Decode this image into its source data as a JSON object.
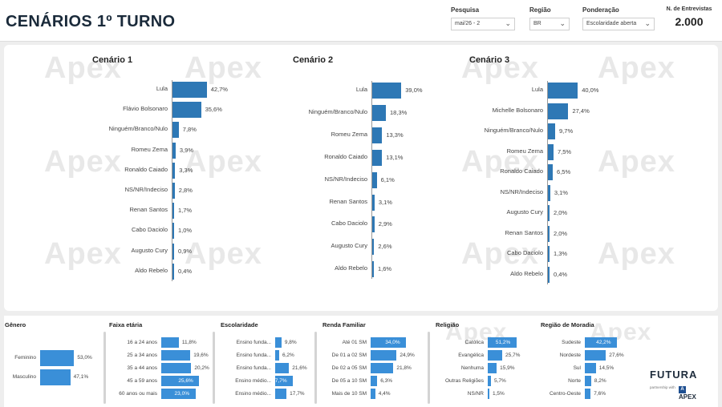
{
  "page": {
    "title": "CENÁRIOS 1º TURNO"
  },
  "filters": [
    {
      "label": "Pesquisa",
      "value": "mai/26 - 2"
    },
    {
      "label": "Região",
      "value": "BR"
    },
    {
      "label": "Ponderação",
      "value": "Escolaridade aberta"
    }
  ],
  "count": {
    "label": "N. de Entrevistas",
    "value": "2.000"
  },
  "watermark": "Apex",
  "chart_data": [
    {
      "type": "bar",
      "title": "Cenário 1",
      "categories": [
        "Lula",
        "Flávio Bolsonaro",
        "Ninguém/Branco/Nulo",
        "Romeu Zema",
        "Ronaldo Caiado",
        "NS/NR/Indeciso",
        "Renan Santos",
        "Cabo Daciolo",
        "Augusto Cury",
        "Aldo Rebelo"
      ],
      "values": [
        42.7,
        35.6,
        7.8,
        3.9,
        3.3,
        2.8,
        1.7,
        1.0,
        0.9,
        0.4
      ],
      "labels": [
        "42,7%",
        "35,6%",
        "7,8%",
        "3,9%",
        "3,3%",
        "2,8%",
        "1,7%",
        "1,0%",
        "0,9%",
        "0,4%"
      ]
    },
    {
      "type": "bar",
      "title": "Cenário 2",
      "categories": [
        "Lula",
        "Ninguém/Branco/Nulo",
        "Romeu Zema",
        "Ronaldo Caiado",
        "NS/NR/Indeciso",
        "Renan Santos",
        "Cabo Daciolo",
        "Augusto Cury",
        "Aldo Rebelo"
      ],
      "values": [
        39.0,
        18.3,
        13.3,
        13.1,
        6.1,
        3.1,
        2.9,
        2.6,
        1.6
      ],
      "labels": [
        "39,0%",
        "18,3%",
        "13,3%",
        "13,1%",
        "6,1%",
        "3,1%",
        "2,9%",
        "2,6%",
        "1,6%"
      ]
    },
    {
      "type": "bar",
      "title": "Cenário 3",
      "categories": [
        "Lula",
        "Michelle Bolsonaro",
        "Ninguém/Branco/Nulo",
        "Romeu Zema",
        "Ronaldo Caiado",
        "NS/NR/Indeciso",
        "Augusto Cury",
        "Renan Santos",
        "Cabo Daciolo",
        "Aldo Rebelo"
      ],
      "values": [
        40.0,
        27.4,
        9.7,
        7.5,
        6.5,
        3.1,
        2.0,
        2.0,
        1.3,
        0.4
      ],
      "labels": [
        "40,0%",
        "27,4%",
        "9,7%",
        "7,5%",
        "6,5%",
        "3,1%",
        "2,0%",
        "2,0%",
        "1,3%",
        "0,4%"
      ]
    },
    {
      "type": "bar",
      "title": "Gênero",
      "categories": [
        "Feminino",
        "Masculino"
      ],
      "values": [
        53.0,
        47.1
      ],
      "labels": [
        "53,0%",
        "47,1%"
      ]
    },
    {
      "type": "bar",
      "title": "Faixa etária",
      "categories": [
        "16 a 24 anos",
        "25 a 34 anos",
        "35 a 44 anos",
        "45 a 59 anos",
        "60 anos ou mais"
      ],
      "values": [
        11.8,
        19.6,
        20.2,
        25.6,
        23.0
      ],
      "labels": [
        "11,8%",
        "19,6%",
        "20,2%",
        "25,6%",
        "23,0%"
      ]
    },
    {
      "type": "bar",
      "title": "Escolaridade",
      "categories": [
        "Ensino funda...",
        "Ensino funda...",
        "Ensino funda...",
        "Ensino médio...",
        "Ensino médio..."
      ],
      "values": [
        9.8,
        6.2,
        21.6,
        27.7,
        17.7
      ],
      "labels": [
        "9,8%",
        "6,2%",
        "21,6%",
        "27,7%",
        "17,7%"
      ]
    },
    {
      "type": "bar",
      "title": "Renda Familiar",
      "categories": [
        "Até 01 SM",
        "De 01 a 02 SM",
        "De 02 a 05 SM",
        "De 05 a 10 SM",
        "Mais de 10 SM"
      ],
      "values": [
        34.0,
        24.9,
        21.8,
        6.3,
        4.4
      ],
      "labels": [
        "34,0%",
        "24,9%",
        "21,8%",
        "6,3%",
        "4,4%"
      ]
    },
    {
      "type": "bar",
      "title": "Religião",
      "categories": [
        "Católica",
        "Evangélica",
        "Nenhuma",
        "Outras Religiões",
        "NS/NR"
      ],
      "values": [
        51.2,
        25.7,
        15.9,
        5.7,
        1.5
      ],
      "labels": [
        "51,2%",
        "25,7%",
        "15,9%",
        "5,7%",
        "1,5%"
      ]
    },
    {
      "type": "bar",
      "title": "Região de Moradia",
      "categories": [
        "Sudeste",
        "Nordeste",
        "Sul",
        "Norte",
        "Centro-Oeste"
      ],
      "values": [
        42.2,
        27.6,
        14.5,
        8.2,
        7.6
      ],
      "labels": [
        "42,2%",
        "27,6%",
        "14,5%",
        "8,2%",
        "7,6%"
      ]
    }
  ],
  "logo": {
    "brand": "FUTURA",
    "partner_text": "partnership with",
    "partner": "APEX"
  }
}
